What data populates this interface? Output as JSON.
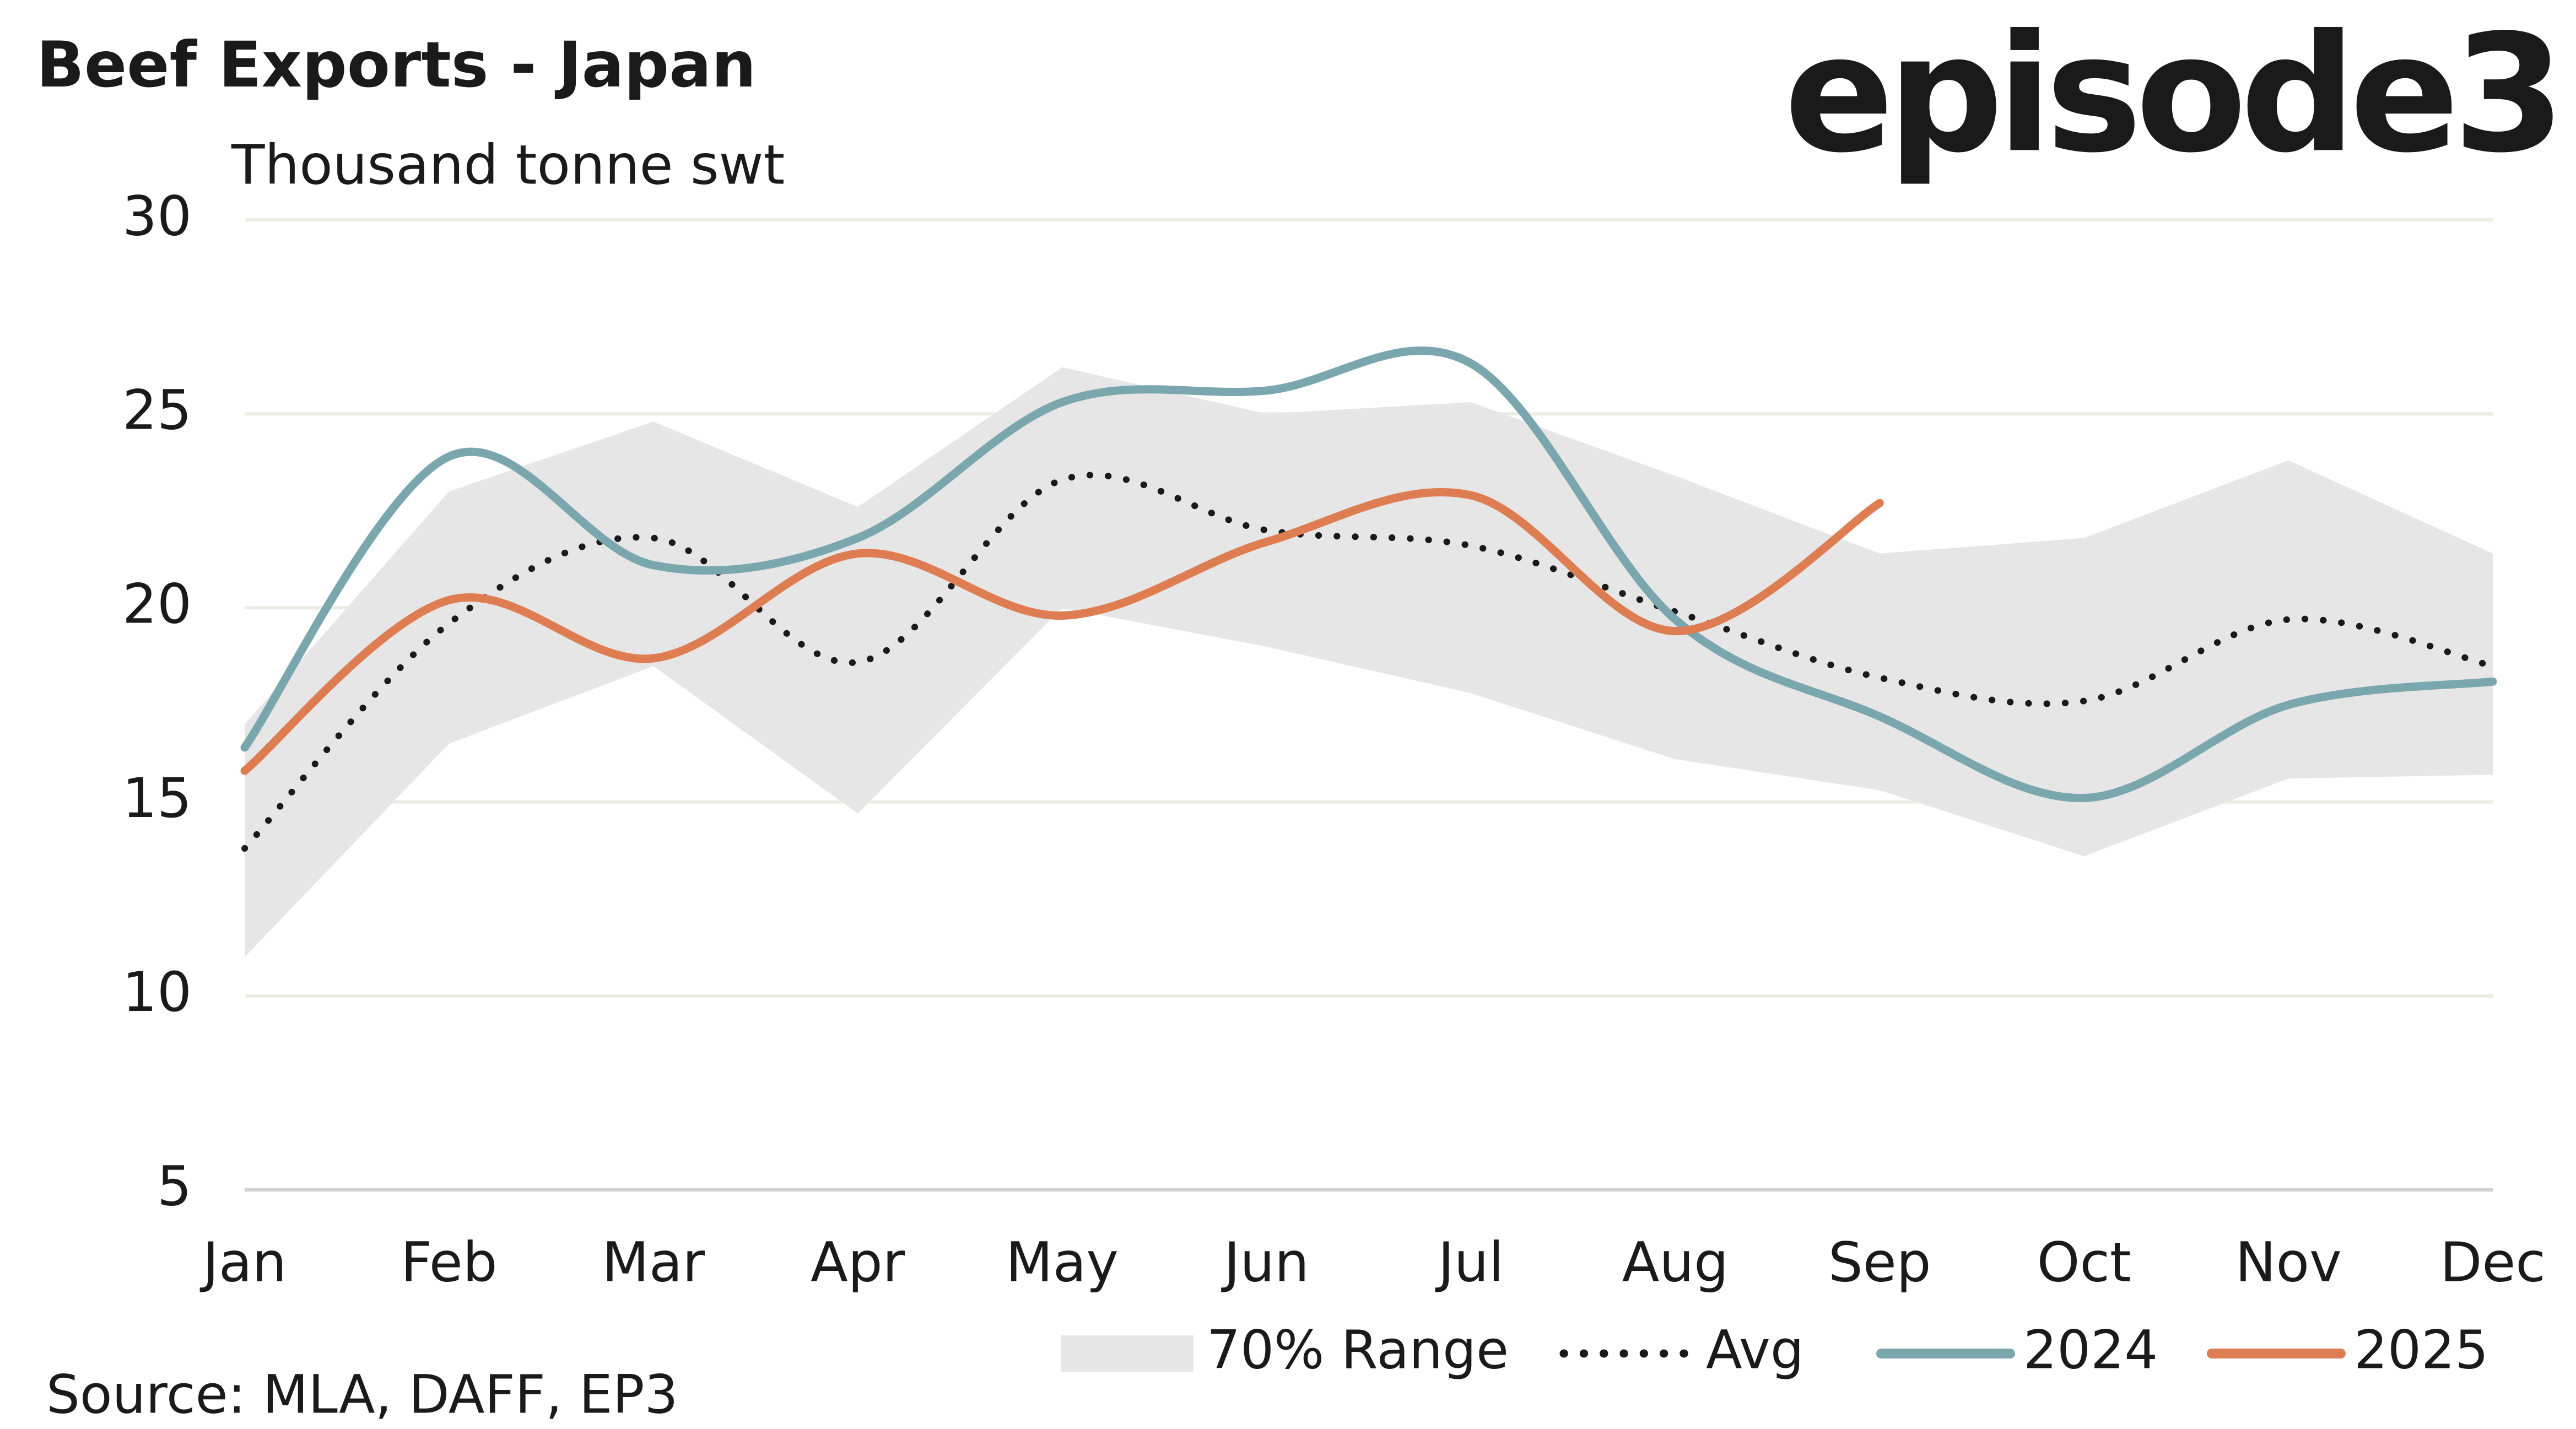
{
  "chart_data": {
    "type": "line",
    "title": "Beef Exports - Japan",
    "subtitle": "Thousand tonne swt",
    "brand": "episode3",
    "source": "Source: MLA, DAFF, EP3",
    "categories": [
      "Jan",
      "Feb",
      "Mar",
      "Apr",
      "May",
      "Jun",
      "Jul",
      "Aug",
      "Sep",
      "Oct",
      "Nov",
      "Dec"
    ],
    "range": {
      "name": "70% Range",
      "color": "#e6e6e6",
      "upper": [
        17,
        23,
        24.8,
        22.6,
        26.2,
        25,
        25.3,
        23.4,
        21.4,
        21.8,
        23.8,
        21.4
      ],
      "lower": [
        11,
        16.5,
        18.5,
        14.7,
        20,
        19,
        17.8,
        16.1,
        15.3,
        13.6,
        15.6,
        15.7
      ]
    },
    "series": [
      {
        "name": "Avg",
        "color": "#1a1a1a",
        "style": "dotted",
        "values": [
          13.8,
          19.6,
          21.8,
          18.6,
          23.3,
          22,
          21.6,
          19.9,
          18.2,
          17.6,
          19.7,
          18.5
        ]
      },
      {
        "name": "2024",
        "color": "#7aa6ae",
        "style": "solid",
        "values": [
          16.4,
          23.9,
          21.1,
          21.8,
          25.3,
          25.6,
          26.3,
          19.7,
          17.2,
          15.1,
          17.5,
          18.1
        ]
      },
      {
        "name": "2025",
        "color": "#de7c52",
        "style": "solid",
        "values": [
          15.8,
          20.2,
          18.7,
          21.4,
          19.8,
          21.7,
          22.9,
          19.4,
          22.7,
          null,
          null,
          null
        ]
      }
    ],
    "ylim": [
      5,
      30
    ],
    "yticks": [
      5,
      10,
      15,
      20,
      25,
      30
    ],
    "grid": true,
    "legend": "bottom-right"
  }
}
